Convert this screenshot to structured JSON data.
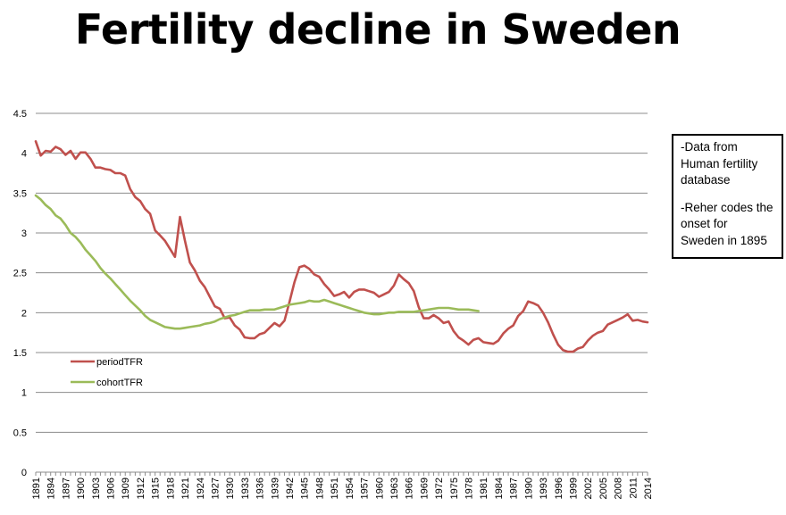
{
  "title": "Fertility decline in Sweden",
  "note": {
    "line1": "-Data from Human fertility database",
    "line2": "-Reher codes the onset for Sweden in 1895"
  },
  "chart_data": {
    "type": "line",
    "xlabel": "",
    "ylabel": "",
    "ylim": [
      0,
      4.5
    ],
    "yticks": [
      "0",
      "0.5",
      "1",
      "1.5",
      "2",
      "2.5",
      "3",
      "3.5",
      "4",
      "4.5"
    ],
    "xlim": [
      1891,
      2014
    ],
    "xticks": [
      "1891",
      "1894",
      "1897",
      "1900",
      "1903",
      "1906",
      "1909",
      "1912",
      "1915",
      "1918",
      "1921",
      "1924",
      "1927",
      "1930",
      "1933",
      "1936",
      "1939",
      "1942",
      "1945",
      "1948",
      "1951",
      "1954",
      "1957",
      "1960",
      "1963",
      "1966",
      "1969",
      "1972",
      "1975",
      "1978",
      "1981",
      "1984",
      "1987",
      "1990",
      "1993",
      "1996",
      "1999",
      "2002",
      "2005",
      "2008",
      "2011",
      "2014"
    ],
    "grid": true,
    "legend_position": "lower-left",
    "series": [
      {
        "name": "periodTFR",
        "color": "#c0504d",
        "x": [
          1891,
          1892,
          1893,
          1894,
          1895,
          1896,
          1897,
          1898,
          1899,
          1900,
          1901,
          1902,
          1903,
          1904,
          1905,
          1906,
          1907,
          1908,
          1909,
          1910,
          1911,
          1912,
          1913,
          1914,
          1915,
          1916,
          1917,
          1918,
          1919,
          1920,
          1921,
          1922,
          1923,
          1924,
          1925,
          1926,
          1927,
          1928,
          1929,
          1930,
          1931,
          1932,
          1933,
          1934,
          1935,
          1936,
          1937,
          1938,
          1939,
          1940,
          1941,
          1942,
          1943,
          1944,
          1945,
          1946,
          1947,
          1948,
          1949,
          1950,
          1951,
          1952,
          1953,
          1954,
          1955,
          1956,
          1957,
          1958,
          1959,
          1960,
          1961,
          1962,
          1963,
          1964,
          1965,
          1966,
          1967,
          1968,
          1969,
          1970,
          1971,
          1972,
          1973,
          1974,
          1975,
          1976,
          1977,
          1978,
          1979,
          1980,
          1981,
          1982,
          1983,
          1984,
          1985,
          1986,
          1987,
          1988,
          1989,
          1990,
          1991,
          1992,
          1993,
          1994,
          1995,
          1996,
          1997,
          1998,
          1999,
          2000,
          2001,
          2002,
          2003,
          2004,
          2005,
          2006,
          2007,
          2008,
          2009,
          2010,
          2011,
          2012,
          2013,
          2014
        ],
        "values": [
          4.15,
          3.97,
          4.03,
          4.02,
          4.08,
          4.05,
          3.98,
          4.03,
          3.93,
          4.01,
          4.01,
          3.93,
          3.82,
          3.82,
          3.8,
          3.79,
          3.75,
          3.75,
          3.72,
          3.55,
          3.45,
          3.4,
          3.3,
          3.24,
          3.03,
          2.97,
          2.9,
          2.8,
          2.7,
          3.2,
          2.9,
          2.63,
          2.53,
          2.4,
          2.32,
          2.2,
          2.08,
          2.05,
          1.93,
          1.94,
          1.84,
          1.79,
          1.69,
          1.68,
          1.68,
          1.73,
          1.75,
          1.81,
          1.87,
          1.83,
          1.9,
          2.13,
          2.38,
          2.57,
          2.59,
          2.55,
          2.48,
          2.45,
          2.36,
          2.29,
          2.21,
          2.23,
          2.26,
          2.19,
          2.26,
          2.29,
          2.29,
          2.27,
          2.25,
          2.2,
          2.23,
          2.26,
          2.34,
          2.48,
          2.42,
          2.37,
          2.27,
          2.07,
          1.93,
          1.93,
          1.97,
          1.93,
          1.87,
          1.89,
          1.77,
          1.69,
          1.65,
          1.6,
          1.66,
          1.68,
          1.63,
          1.62,
          1.61,
          1.65,
          1.74,
          1.8,
          1.84,
          1.96,
          2.02,
          2.14,
          2.12,
          2.09,
          2.0,
          1.88,
          1.73,
          1.6,
          1.53,
          1.51,
          1.51,
          1.55,
          1.57,
          1.65,
          1.71,
          1.75,
          1.77,
          1.85,
          1.88,
          1.91,
          1.94,
          1.98,
          1.9,
          1.91,
          1.89,
          1.88
        ]
      },
      {
        "name": "cohortTFR",
        "color": "#9bbb59",
        "x": [
          1891,
          1892,
          1893,
          1894,
          1895,
          1896,
          1897,
          1898,
          1899,
          1900,
          1901,
          1902,
          1903,
          1904,
          1905,
          1906,
          1907,
          1908,
          1909,
          1910,
          1911,
          1912,
          1913,
          1914,
          1915,
          1916,
          1917,
          1918,
          1919,
          1920,
          1921,
          1922,
          1923,
          1924,
          1925,
          1926,
          1927,
          1928,
          1929,
          1930,
          1931,
          1932,
          1933,
          1934,
          1935,
          1936,
          1937,
          1938,
          1939,
          1940,
          1941,
          1942,
          1943,
          1944,
          1945,
          1946,
          1947,
          1948,
          1949,
          1950,
          1951,
          1952,
          1953,
          1954,
          1955,
          1956,
          1957,
          1958,
          1959,
          1960,
          1961,
          1962,
          1963,
          1964,
          1965,
          1966,
          1967,
          1968,
          1969,
          1970,
          1971,
          1972,
          1973,
          1974,
          1975,
          1976,
          1977,
          1978,
          1979,
          1980
        ],
        "values": [
          3.47,
          3.42,
          3.35,
          3.3,
          3.22,
          3.18,
          3.1,
          3.0,
          2.95,
          2.88,
          2.79,
          2.72,
          2.65,
          2.56,
          2.49,
          2.43,
          2.36,
          2.29,
          2.22,
          2.15,
          2.09,
          2.03,
          1.96,
          1.91,
          1.88,
          1.85,
          1.82,
          1.81,
          1.8,
          1.8,
          1.81,
          1.82,
          1.83,
          1.84,
          1.86,
          1.87,
          1.89,
          1.92,
          1.94,
          1.96,
          1.97,
          1.99,
          2.01,
          2.03,
          2.03,
          2.03,
          2.04,
          2.04,
          2.04,
          2.06,
          2.08,
          2.1,
          2.11,
          2.12,
          2.13,
          2.15,
          2.14,
          2.14,
          2.16,
          2.14,
          2.12,
          2.1,
          2.08,
          2.06,
          2.04,
          2.02,
          2.0,
          1.99,
          1.98,
          1.98,
          1.99,
          2.0,
          2.0,
          2.01,
          2.01,
          2.01,
          2.01,
          2.02,
          2.03,
          2.04,
          2.05,
          2.06,
          2.06,
          2.06,
          2.05,
          2.04,
          2.04,
          2.04,
          2.03,
          2.02
        ]
      }
    ]
  }
}
